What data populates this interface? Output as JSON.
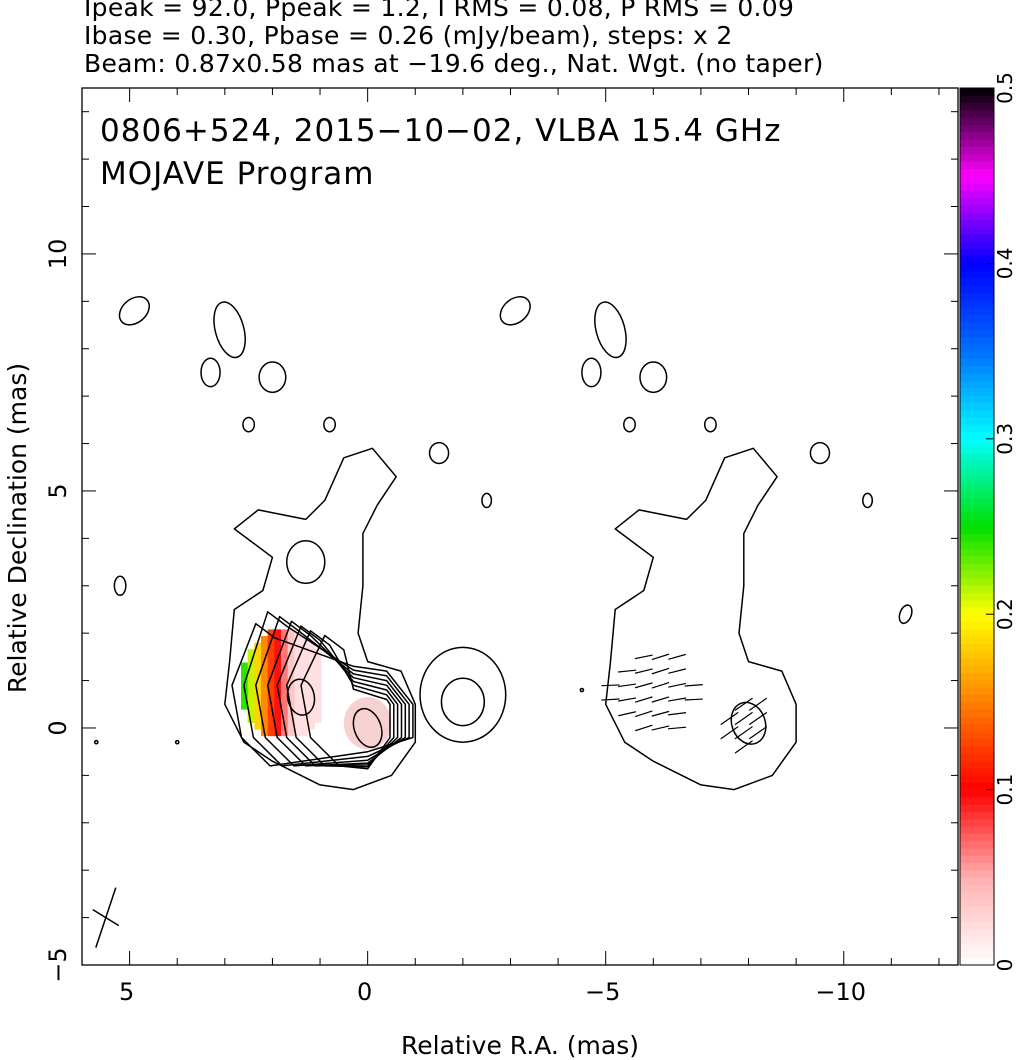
{
  "header": {
    "line1": "Ipeak = 92.0, Ppeak = 1.2, I RMS = 0.08, P RMS = 0.09",
    "line2": "Ibase = 0.30, Pbase = 0.26 (mJy/beam), steps: x 2",
    "line3": "Beam: 0.87x0.58 mas at −19.6 deg., Nat. Wgt. (no taper)"
  },
  "plot_text": {
    "title": "0806+524, 2015−10−02, VLBA 15.4 GHz",
    "subtitle": "MOJAVE Program"
  },
  "chart_data": {
    "type": "heatmap",
    "xlabel": "Relative R.A. (mas)",
    "ylabel": "Relative Declination (mas)",
    "xlim": [
      6.0,
      -12.4
    ],
    "ylim": [
      -5.0,
      13.5
    ],
    "x_ticks": [
      5,
      0,
      -5,
      -10
    ],
    "x_tick_labels": [
      "5",
      "0",
      "−5",
      "−10"
    ],
    "y_ticks": [
      -5,
      0,
      5,
      10
    ],
    "y_tick_labels": [
      "−5",
      "0",
      "5",
      "10"
    ],
    "colorbar": {
      "range": [
        0,
        0.5
      ],
      "ticks": [
        0,
        0.1,
        0.2,
        0.3,
        0.4,
        0.5
      ],
      "tick_labels": [
        "0",
        "0.1",
        "0.2",
        "0.3",
        "0.4",
        "0.5"
      ],
      "stops": [
        "#ffffff",
        "#ffb0b0",
        "#ff0000",
        "#ff8000",
        "#ffff00",
        "#00e000",
        "#00ffff",
        "#0070ff",
        "#0000ff",
        "#ff00ff",
        "#000000"
      ]
    },
    "panels": [
      "left: Stokes I contours + fractional polarization colour",
      "right: Stokes I contours + EVPA sticks"
    ],
    "core_position_mas": [
      0,
      0
    ],
    "right_panel_offset_mas": -8.0,
    "fractional_polarization_region": {
      "ra_range": [
        2.8,
        1.0
      ],
      "dec_range": [
        -0.3,
        2.0
      ],
      "values": [
        0.02,
        0.25
      ]
    }
  }
}
